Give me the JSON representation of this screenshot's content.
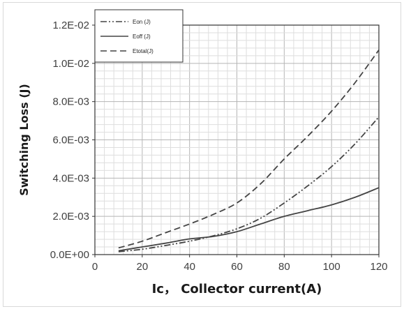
{
  "chart_data": {
    "type": "line",
    "title": "",
    "xlabel": "Ic， Collector current(A)",
    "ylabel": "Switching Loss (J)",
    "xlim": [
      0,
      120
    ],
    "ylim": [
      0,
      0.012
    ],
    "x_ticks": [
      0,
      20,
      40,
      60,
      80,
      100,
      120
    ],
    "x_tick_labels": [
      "0",
      "20",
      "40",
      "60",
      "80",
      "100",
      "120"
    ],
    "y_ticks": [
      0,
      0.002,
      0.004,
      0.006,
      0.008,
      0.01,
      0.012
    ],
    "y_tick_labels": [
      "0.0E+00",
      "2.0E-03",
      "4.0E-03",
      "6.0E-03",
      "8.0E-03",
      "1.0E-02",
      "1.2E-02"
    ],
    "grid": true,
    "legend_position": "top-left",
    "series": [
      {
        "name": "Eon (J)",
        "style": "dash-dot-dot",
        "color": "#444444",
        "x": [
          10,
          20,
          30,
          40,
          50,
          60,
          70,
          80,
          90,
          100,
          110,
          120
        ],
        "y": [
          0.00015,
          0.00028,
          0.00048,
          0.0007,
          0.00098,
          0.00135,
          0.0019,
          0.0027,
          0.0036,
          0.0046,
          0.0058,
          0.0072
        ]
      },
      {
        "name": "Eoff (J)",
        "style": "solid",
        "color": "#444444",
        "x": [
          10,
          20,
          30,
          40,
          50,
          60,
          70,
          80,
          90,
          100,
          110,
          120
        ],
        "y": [
          0.0002,
          0.0004,
          0.0006,
          0.00082,
          0.00095,
          0.0012,
          0.0016,
          0.002,
          0.0023,
          0.0026,
          0.003,
          0.0035
        ]
      },
      {
        "name": "Etotal(J)",
        "style": "dashed",
        "color": "#444444",
        "x": [
          10,
          20,
          30,
          40,
          50,
          60,
          70,
          80,
          90,
          100,
          110,
          120
        ],
        "y": [
          0.00035,
          0.0007,
          0.00115,
          0.0016,
          0.0021,
          0.0027,
          0.0037,
          0.005,
          0.0062,
          0.0075,
          0.009,
          0.0107
        ]
      }
    ]
  }
}
